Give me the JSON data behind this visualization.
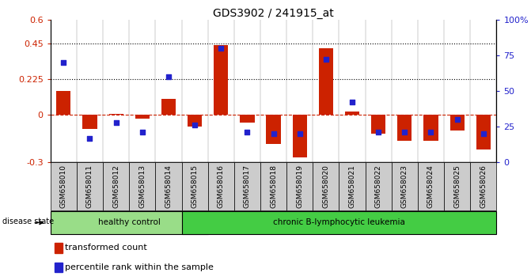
{
  "title": "GDS3902 / 241915_at",
  "samples": [
    "GSM658010",
    "GSM658011",
    "GSM658012",
    "GSM658013",
    "GSM658014",
    "GSM658015",
    "GSM658016",
    "GSM658017",
    "GSM658018",
    "GSM658019",
    "GSM658020",
    "GSM658021",
    "GSM658022",
    "GSM658023",
    "GSM658024",
    "GSM658025",
    "GSM658026"
  ],
  "transformed_count": [
    0.15,
    -0.09,
    0.005,
    -0.025,
    0.1,
    -0.075,
    0.44,
    -0.05,
    -0.185,
    -0.27,
    0.42,
    0.02,
    -0.12,
    -0.165,
    -0.165,
    -0.1,
    -0.22
  ],
  "percentile_rank": [
    70,
    17,
    28,
    21,
    60,
    26,
    80,
    21,
    20,
    20,
    72,
    42,
    21,
    21,
    21,
    30,
    20
  ],
  "bar_color": "#cc2200",
  "dot_color": "#2222cc",
  "ylim_left": [
    -0.3,
    0.6
  ],
  "ylim_right": [
    0,
    100
  ],
  "yticks_left": [
    -0.3,
    0.0,
    0.225,
    0.45,
    0.6
  ],
  "ytick_labels_left": [
    "-0.3",
    "0",
    "0.225",
    "0.45",
    "0.6"
  ],
  "yticks_right": [
    0,
    25,
    50,
    75,
    100
  ],
  "ytick_labels_right": [
    "0",
    "25",
    "50",
    "75",
    "100%"
  ],
  "hlines": [
    0.225,
    0.45
  ],
  "hline_zero_color": "#cc2200",
  "groups": [
    {
      "label": "healthy control",
      "start": 0,
      "end": 5,
      "color": "#99dd88"
    },
    {
      "label": "chronic B-lymphocytic leukemia",
      "start": 5,
      "end": 16,
      "color": "#44cc44"
    }
  ],
  "disease_state_label": "disease state",
  "legend": [
    {
      "label": "transformed count",
      "color": "#cc2200"
    },
    {
      "label": "percentile rank within the sample",
      "color": "#2222cc"
    }
  ],
  "tick_bg_color": "#cccccc",
  "bar_width": 0.55,
  "dot_size": 25
}
